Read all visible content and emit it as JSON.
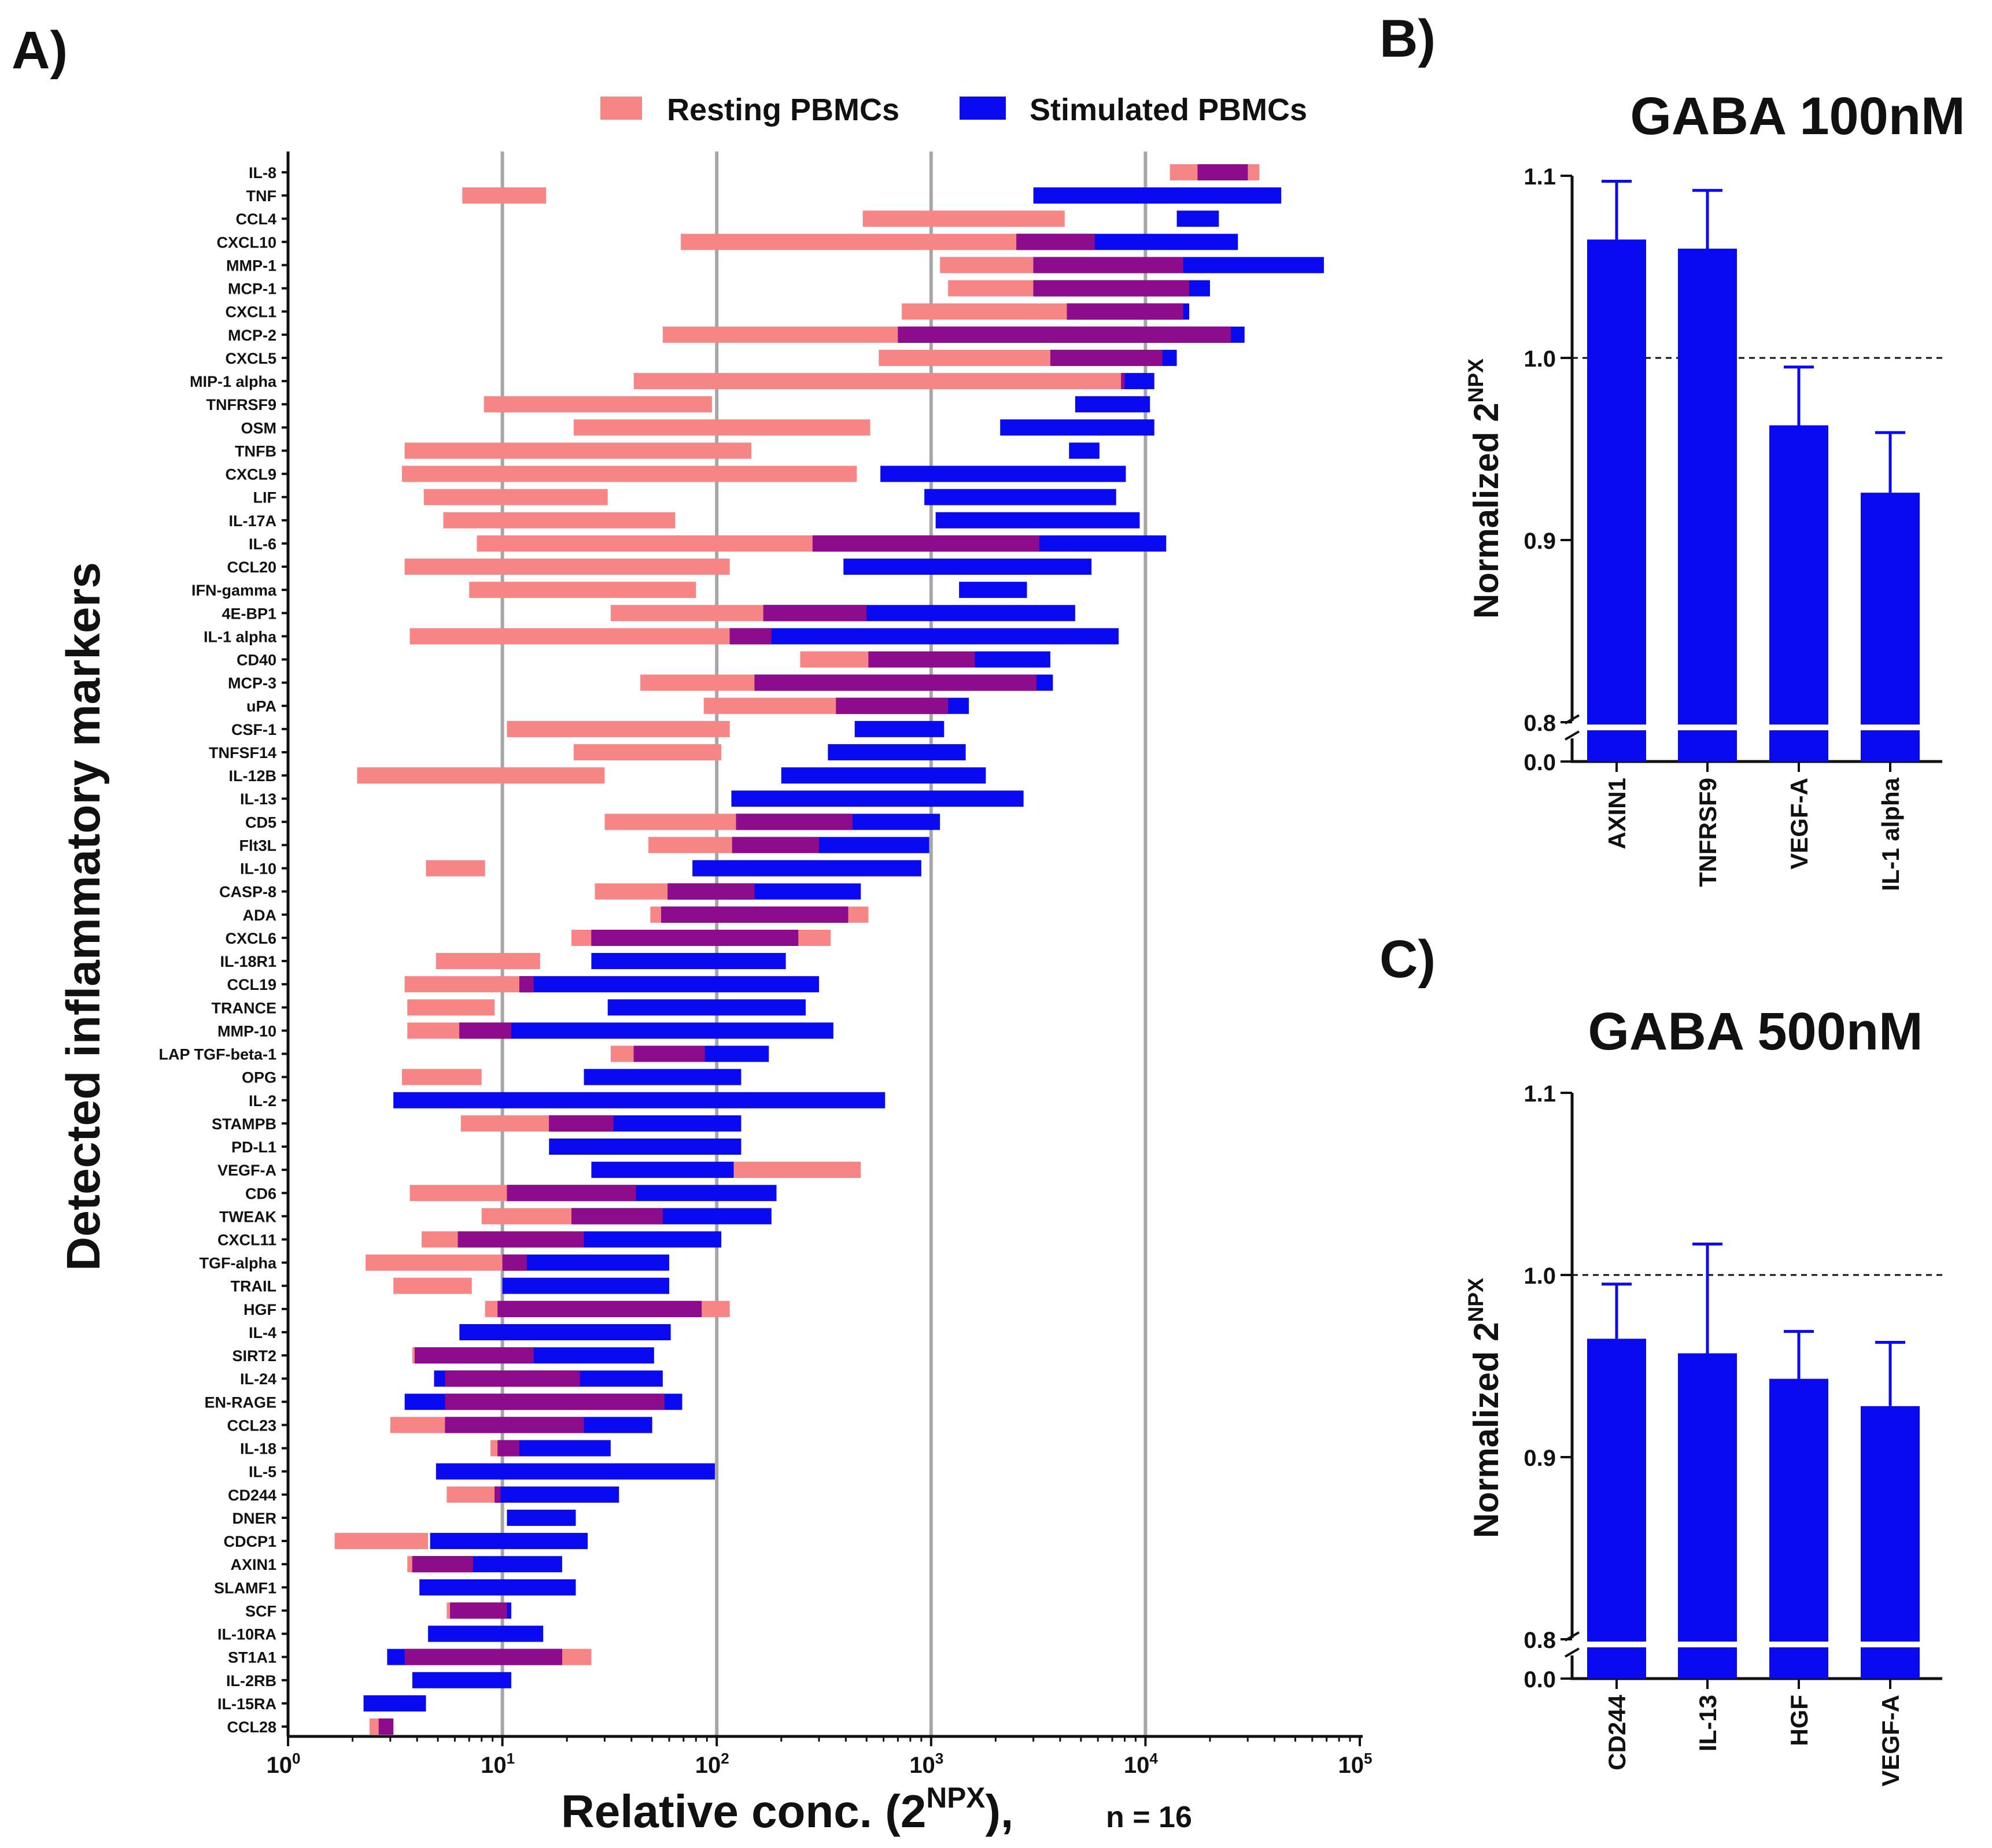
{
  "panel_labels": {
    "a": "A)",
    "b": "B)",
    "c": "C)"
  },
  "colors": {
    "resting": "#f88585",
    "stimulated": "#0a0af0",
    "overlap": "#8c0c8c",
    "gridline": "#a6a6a6",
    "bar": "#0a0af0",
    "axis": "#111111"
  },
  "chart_data": [
    {
      "type": "range-bar",
      "panel": "A)",
      "title": "",
      "ylabel": "Detected inflammatory markers",
      "xlabel": {
        "base": "Relative conc. (2",
        "sup": "NPX",
        "close": "),",
        "note": "n = 16"
      },
      "xscale": "log10",
      "xlim": [
        1,
        100000
      ],
      "xticks": [
        {
          "value": 1,
          "base": "10",
          "exp": "0"
        },
        {
          "value": 10,
          "base": "10",
          "exp": "1"
        },
        {
          "value": 100,
          "base": "10",
          "exp": "2"
        },
        {
          "value": 1000,
          "base": "10",
          "exp": "3"
        },
        {
          "value": 10000,
          "base": "10",
          "exp": "4"
        },
        {
          "value": 100000,
          "base": "10",
          "exp": "5"
        }
      ],
      "gridlines_at": [
        10,
        100,
        1000,
        10000
      ],
      "legend": [
        {
          "label": "Resting PBMCs",
          "series": "resting"
        },
        {
          "label": "Stimulated PBMCs",
          "series": "stimulated"
        }
      ],
      "markers": [
        {
          "name": "IL-8",
          "resting": [
            13000,
            34000
          ],
          "stimulated": [
            17500,
            30000
          ]
        },
        {
          "name": "TNF",
          "resting": [
            6.5,
            16
          ],
          "stimulated": [
            3000,
            43000
          ]
        },
        {
          "name": "CCL4",
          "resting": [
            480,
            4200
          ],
          "stimulated": [
            14000,
            22000
          ]
        },
        {
          "name": "CXCL10",
          "resting": [
            68,
            5800
          ],
          "stimulated": [
            2500,
            27000
          ]
        },
        {
          "name": "MMP-1",
          "resting": [
            1100,
            15000
          ],
          "stimulated": [
            3000,
            68000
          ]
        },
        {
          "name": "MCP-1",
          "resting": [
            1200,
            16000
          ],
          "stimulated": [
            3000,
            20000
          ]
        },
        {
          "name": "CXCL1",
          "resting": [
            730,
            15000
          ],
          "stimulated": [
            4300,
            16000
          ]
        },
        {
          "name": "MCP-2",
          "resting": [
            56,
            25000
          ],
          "stimulated": [
            700,
            29000
          ]
        },
        {
          "name": "CXCL5",
          "resting": [
            570,
            12000
          ],
          "stimulated": [
            3600,
            14000
          ]
        },
        {
          "name": "MIP-1 alpha",
          "resting": [
            41,
            8000
          ],
          "stimulated": [
            7700,
            11000
          ]
        },
        {
          "name": "TNFRSF9",
          "resting": [
            8.2,
            95
          ],
          "stimulated": [
            4700,
            10500
          ]
        },
        {
          "name": "OSM",
          "resting": [
            21.5,
            520
          ],
          "stimulated": [
            2100,
            11000
          ]
        },
        {
          "name": "TNFB",
          "resting": [
            3.5,
            145
          ],
          "stimulated": [
            4400,
            6100
          ]
        },
        {
          "name": "CXCL9",
          "resting": [
            3.4,
            450
          ],
          "stimulated": [
            580,
            8100
          ]
        },
        {
          "name": "LIF",
          "resting": [
            4.3,
            31
          ],
          "stimulated": [
            930,
            7300
          ]
        },
        {
          "name": "IL-17A",
          "resting": [
            5.3,
            64
          ],
          "stimulated": [
            1050,
            9400
          ]
        },
        {
          "name": "IL-6",
          "resting": [
            7.6,
            3200
          ],
          "stimulated": [
            280,
            12500
          ]
        },
        {
          "name": "CCL20",
          "resting": [
            3.5,
            115
          ],
          "stimulated": [
            390,
            5600
          ]
        },
        {
          "name": "IFN-gamma",
          "resting": [
            7,
            80
          ],
          "stimulated": [
            1350,
            2800
          ]
        },
        {
          "name": "4E-BP1",
          "resting": [
            32,
            500
          ],
          "stimulated": [
            165,
            4700
          ]
        },
        {
          "name": "IL-1 alpha",
          "resting": [
            3.7,
            180
          ],
          "stimulated": [
            115,
            7500
          ]
        },
        {
          "name": "CD40",
          "resting": [
            245,
            1600
          ],
          "stimulated": [
            510,
            3600
          ]
        },
        {
          "name": "MCP-3",
          "resting": [
            44,
            3100
          ],
          "stimulated": [
            150,
            3700
          ]
        },
        {
          "name": "uPA",
          "resting": [
            87,
            1200
          ],
          "stimulated": [
            360,
            1500
          ]
        },
        {
          "name": "CSF-1",
          "resting": [
            10.5,
            115
          ],
          "stimulated": [
            440,
            1150
          ]
        },
        {
          "name": "TNFSF14",
          "resting": [
            21.5,
            105
          ],
          "stimulated": [
            330,
            1450
          ]
        },
        {
          "name": "IL-12B",
          "resting": [
            2.1,
            30
          ],
          "stimulated": [
            200,
            1800
          ]
        },
        {
          "name": "IL-13",
          "resting": [],
          "stimulated": [
            117,
            2700
          ]
        },
        {
          "name": "CD5",
          "resting": [
            30,
            430
          ],
          "stimulated": [
            123,
            1100
          ]
        },
        {
          "name": "Flt3L",
          "resting": [
            48,
            300
          ],
          "stimulated": [
            118,
            980
          ]
        },
        {
          "name": "IL-10",
          "resting": [
            4.4,
            8.3
          ],
          "stimulated": [
            77,
            900
          ]
        },
        {
          "name": "CASP-8",
          "resting": [
            27,
            150
          ],
          "stimulated": [
            59,
            470
          ]
        },
        {
          "name": "ADA",
          "resting": [
            49,
            510
          ],
          "stimulated": [
            55,
            410
          ]
        },
        {
          "name": "CXCL6",
          "resting": [
            21,
            340
          ],
          "stimulated": [
            26,
            240
          ]
        },
        {
          "name": "IL-18R1",
          "resting": [
            4.9,
            15
          ],
          "stimulated": [
            26,
            210
          ]
        },
        {
          "name": "CCL19",
          "resting": [
            3.5,
            14
          ],
          "stimulated": [
            12,
            300
          ]
        },
        {
          "name": "TRANCE",
          "resting": [
            3.6,
            9.2
          ],
          "stimulated": [
            31,
            260
          ]
        },
        {
          "name": "MMP-10",
          "resting": [
            3.6,
            11
          ],
          "stimulated": [
            6.3,
            350
          ]
        },
        {
          "name": "LAP TGF-beta-1",
          "resting": [
            32,
            88
          ],
          "stimulated": [
            41,
            175
          ]
        },
        {
          "name": "OPG",
          "resting": [
            3.4,
            8
          ],
          "stimulated": [
            24,
            130
          ]
        },
        {
          "name": "IL-2",
          "resting": [],
          "stimulated": [
            3.1,
            610
          ]
        },
        {
          "name": "STAMPB",
          "resting": [
            6.4,
            33
          ],
          "stimulated": [
            16.5,
            130
          ]
        },
        {
          "name": "PD-L1",
          "resting": [],
          "stimulated": [
            16.5,
            130
          ]
        },
        {
          "name": "VEGF-A",
          "resting": [
            120,
            470
          ],
          "stimulated": [
            26,
            120
          ]
        },
        {
          "name": "CD6",
          "resting": [
            3.7,
            42
          ],
          "stimulated": [
            10.5,
            190
          ]
        },
        {
          "name": "TWEAK",
          "resting": [
            8,
            56
          ],
          "stimulated": [
            21,
            180
          ]
        },
        {
          "name": "CXCL11",
          "resting": [
            4.2,
            24
          ],
          "stimulated": [
            6.2,
            105
          ]
        },
        {
          "name": "TGF-alpha",
          "resting": [
            2.3,
            13
          ],
          "stimulated": [
            10,
            60
          ]
        },
        {
          "name": "TRAIL",
          "resting": [
            3.1,
            7.2
          ],
          "stimulated": [
            10,
            60
          ]
        },
        {
          "name": "HGF",
          "resting": [
            8.3,
            115
          ],
          "stimulated": [
            9.5,
            85
          ]
        },
        {
          "name": "IL-4",
          "resting": [],
          "stimulated": [
            6.3,
            61
          ]
        },
        {
          "name": "SIRT2",
          "resting": [
            3.8,
            14
          ],
          "stimulated": [
            3.9,
            51
          ]
        },
        {
          "name": "IL-24",
          "resting": [
            5.4,
            23
          ],
          "stimulated": [
            4.8,
            56
          ]
        },
        {
          "name": "EN-RAGE",
          "resting": [
            5.4,
            57
          ],
          "stimulated": [
            3.5,
            69
          ]
        },
        {
          "name": "CCL23",
          "resting": [
            3,
            24
          ],
          "stimulated": [
            5.4,
            50
          ]
        },
        {
          "name": "IL-18",
          "resting": [
            8.8,
            12
          ],
          "stimulated": [
            9.5,
            32
          ]
        },
        {
          "name": "IL-5",
          "resting": [],
          "stimulated": [
            4.9,
            98
          ]
        },
        {
          "name": "CD244",
          "resting": [
            5.5,
            9.8
          ],
          "stimulated": [
            9.2,
            35
          ]
        },
        {
          "name": "DNER",
          "resting": [],
          "stimulated": [
            10.5,
            22
          ]
        },
        {
          "name": "CDCP1",
          "resting": [
            1.65,
            4.5
          ],
          "stimulated": [
            4.6,
            25
          ]
        },
        {
          "name": "AXIN1",
          "resting": [
            3.6,
            7.3
          ],
          "stimulated": [
            3.8,
            19
          ]
        },
        {
          "name": "SLAMF1",
          "resting": [],
          "stimulated": [
            4.1,
            22
          ]
        },
        {
          "name": "SCF",
          "resting": [
            5.5,
            10.5
          ],
          "stimulated": [
            5.7,
            11
          ]
        },
        {
          "name": "IL-10RA",
          "resting": [],
          "stimulated": [
            4.5,
            15.5
          ]
        },
        {
          "name": "ST1A1",
          "resting": [
            3.5,
            26
          ],
          "stimulated": [
            2.9,
            19
          ]
        },
        {
          "name": "IL-2RB",
          "resting": [],
          "stimulated": [
            3.8,
            11
          ]
        },
        {
          "name": "IL-15RA",
          "resting": [],
          "stimulated": [
            2.25,
            4.4
          ]
        },
        {
          "name": "CCL28",
          "resting": [
            2.4,
            3.1
          ],
          "stimulated": [
            2.65,
            3.1
          ]
        }
      ]
    },
    {
      "type": "bar",
      "panel": "B)",
      "title": "GABA 100nM",
      "ylabel": {
        "base": "Normalized  2",
        "sup": "NPX"
      },
      "categories": [
        "AXIN1",
        "TNFRSF9",
        "VEGF-A",
        "IL-1 alpha"
      ],
      "values": [
        1.065,
        1.06,
        0.963,
        0.926
      ],
      "error_upper": [
        1.097,
        1.092,
        0.995,
        0.959
      ],
      "ylim": [
        0.0,
        1.1
      ],
      "axis_break": [
        0.0,
        0.8
      ],
      "ytick_labels": [
        "1.1",
        "1.0",
        "0.9",
        "0.8",
        "0.0"
      ],
      "reference_line": 1.0
    },
    {
      "type": "bar",
      "panel": "C)",
      "title": "GABA 500nM",
      "ylabel": {
        "base": "Normalized  2",
        "sup": "NPX"
      },
      "categories": [
        "CD244",
        "IL-13",
        "HGF",
        "VEGF-A"
      ],
      "values": [
        0.965,
        0.957,
        0.943,
        0.928
      ],
      "error_upper": [
        0.995,
        1.017,
        0.969,
        0.963
      ],
      "ylim": [
        0.0,
        1.1
      ],
      "axis_break": [
        0.0,
        0.8
      ],
      "ytick_labels": [
        "1.1",
        "1.0",
        "0.9",
        "0.8",
        "0.0"
      ],
      "reference_line": 1.0
    }
  ]
}
